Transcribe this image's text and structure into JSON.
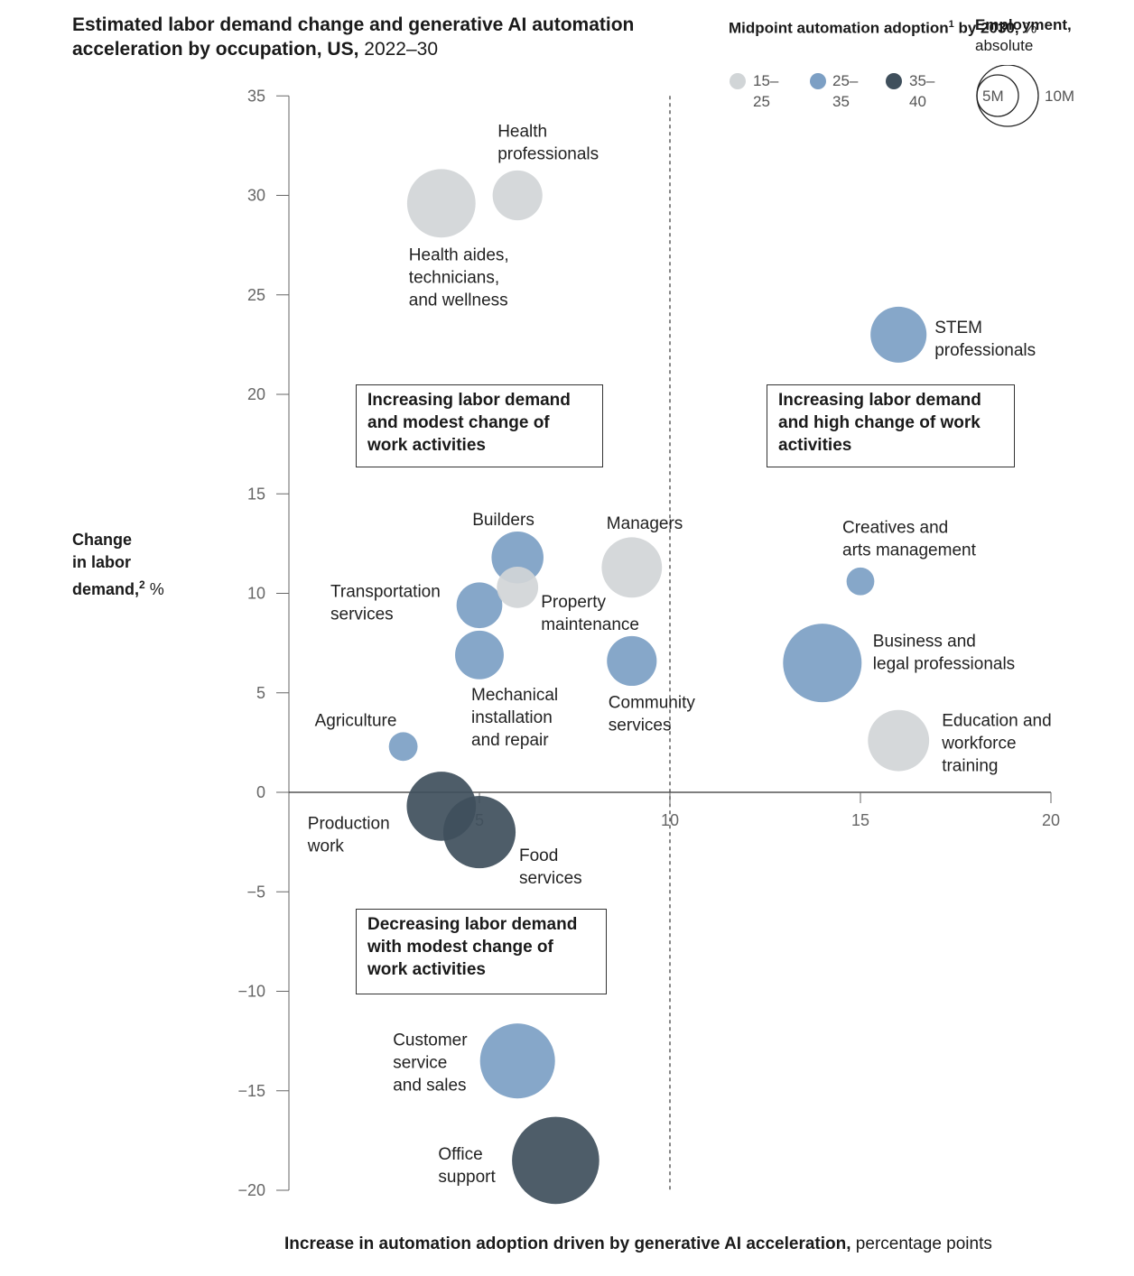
{
  "title": {
    "bold": "Estimated labor demand change and generative AI automation acceleration by occupation, US,",
    "light": "2022–30"
  },
  "legend": {
    "color_title_bold": "Midpoint automation adoption",
    "color_title_sup": "1",
    "color_title_bold2": " by 2030,",
    "color_title_light": " %",
    "size_title_bold": "Employment,",
    "size_title_light": "absolute",
    "items": [
      {
        "label_a": "15–",
        "label_b": "25",
        "color": "#d1d5d7"
      },
      {
        "label_a": "25–",
        "label_b": "35",
        "color": "#7c9fc4"
      },
      {
        "label_a": "35–",
        "label_b": "40",
        "color": "#3f4f5c"
      }
    ],
    "size_small": "5M",
    "size_large": "10M"
  },
  "axis": {
    "ylabel_l1": "Change",
    "ylabel_l2": "in labor",
    "ylabel_l3": "demand,",
    "ylabel_sup": "2",
    "ylabel_light": " %",
    "xlabel_bold": "Increase in automation adoption driven by generative AI acceleration,",
    "xlabel_light": " percentage points"
  },
  "quadrants": {
    "top_left": "Increasing labor demand and modest change of work activities",
    "top_right": "Increasing labor demand and high change of work activities",
    "bottom_left": "Decreasing labor demand with modest change of work activities"
  },
  "colors": {
    "low": "#d1d5d7",
    "mid": "#7c9fc4",
    "high": "#3f4f5c"
  },
  "chart_data": {
    "type": "scatter",
    "title": "Estimated labor demand change and generative AI automation acceleration by occupation, US, 2022–30",
    "xlabel": "Increase in automation adoption driven by generative AI acceleration, percentage points",
    "ylabel": "Change in labor demand, %",
    "xlim": [
      0,
      20
    ],
    "ylim": [
      -20,
      35
    ],
    "xticks": [
      5,
      10,
      15,
      20
    ],
    "yticks": [
      35,
      30,
      25,
      20,
      15,
      10,
      5,
      0,
      -5,
      -10,
      -15,
      -20
    ],
    "divider_x": 10,
    "points": [
      {
        "name": "Health aides, technicians, and wellness",
        "label_lines": [
          "Health aides,",
          "technicians,",
          "and wellness"
        ],
        "x": 4,
        "y": 29.6,
        "employment_m": 8.5,
        "adoption": "15–25"
      },
      {
        "name": "Health professionals",
        "label_lines": [
          "Health",
          "professionals"
        ],
        "x": 6,
        "y": 30,
        "employment_m": 4.5,
        "adoption": "15–25"
      },
      {
        "name": "STEM professionals",
        "label_lines": [
          "STEM",
          "professionals"
        ],
        "x": 16,
        "y": 23,
        "employment_m": 5.7,
        "adoption": "25–35"
      },
      {
        "name": "Builders",
        "label_lines": [
          "Builders"
        ],
        "x": 6,
        "y": 11.8,
        "employment_m": 4.9,
        "adoption": "25–35"
      },
      {
        "name": "Property maintenance",
        "label_lines": [
          "Property",
          "maintenance"
        ],
        "x": 6,
        "y": 10.3,
        "employment_m": 3.1,
        "adoption": "15–25"
      },
      {
        "name": "Managers",
        "label_lines": [
          "Managers"
        ],
        "x": 9,
        "y": 11.3,
        "employment_m": 6.6,
        "adoption": "15–25"
      },
      {
        "name": "Transportation services",
        "label_lines": [
          "Transportation",
          "services"
        ],
        "x": 5,
        "y": 9.4,
        "employment_m": 3.8,
        "adoption": "25–35"
      },
      {
        "name": "Mechanical installation and repair",
        "label_lines": [
          "Mechanical",
          "installation",
          "and repair"
        ],
        "x": 5,
        "y": 6.9,
        "employment_m": 4.3,
        "adoption": "25–35"
      },
      {
        "name": "Community services",
        "label_lines": [
          "Community",
          "services"
        ],
        "x": 9,
        "y": 6.6,
        "employment_m": 4.5,
        "adoption": "25–35"
      },
      {
        "name": "Creatives and arts management",
        "label_lines": [
          "Creatives and",
          "arts management"
        ],
        "x": 15,
        "y": 10.6,
        "employment_m": 1.4,
        "adoption": "25–35"
      },
      {
        "name": "Business and legal professionals",
        "label_lines": [
          "Business and",
          "legal professionals"
        ],
        "x": 14,
        "y": 6.5,
        "employment_m": 11.2,
        "adoption": "25–35"
      },
      {
        "name": "Education and workforce training",
        "label_lines": [
          "Education and",
          "workforce",
          "training"
        ],
        "x": 16,
        "y": 2.6,
        "employment_m": 6.8,
        "adoption": "15–25"
      },
      {
        "name": "Agriculture",
        "label_lines": [
          "Agriculture"
        ],
        "x": 3,
        "y": 2.3,
        "employment_m": 1.5,
        "adoption": "25–35"
      },
      {
        "name": "Production work",
        "label_lines": [
          "Production",
          "work"
        ],
        "x": 4,
        "y": -0.7,
        "employment_m": 8.7,
        "adoption": "35–40"
      },
      {
        "name": "Food services",
        "label_lines": [
          "Food",
          "services"
        ],
        "x": 5,
        "y": -2,
        "employment_m": 9.5,
        "adoption": "35–40"
      },
      {
        "name": "Customer service and sales",
        "label_lines": [
          "Customer",
          "service",
          "and sales"
        ],
        "x": 6,
        "y": -13.5,
        "employment_m": 10.2,
        "adoption": "25–35"
      },
      {
        "name": "Office support",
        "label_lines": [
          "Office",
          "support"
        ],
        "x": 7,
        "y": -18.5,
        "employment_m": 13.8,
        "adoption": "35–40"
      }
    ]
  }
}
